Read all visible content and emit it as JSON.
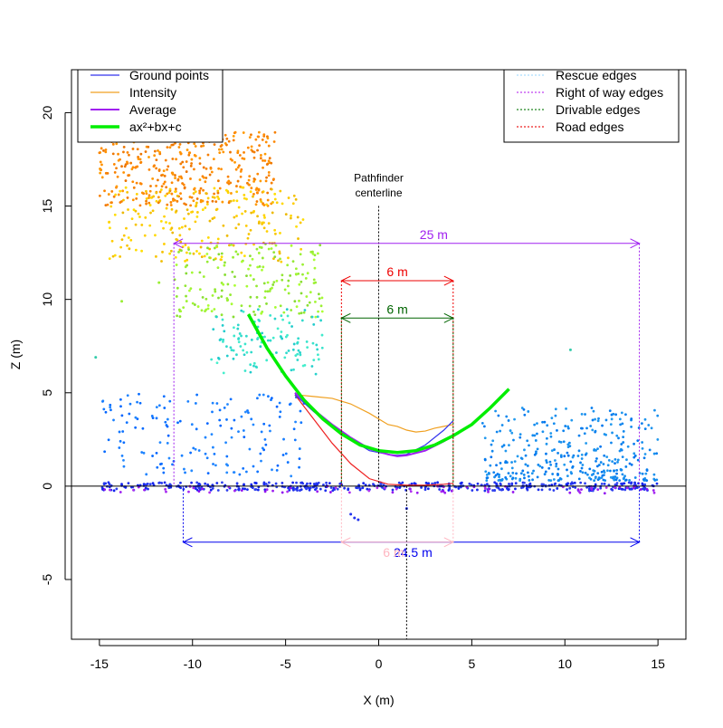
{
  "chart_data": {
    "type": "scatter",
    "title": "",
    "xlabel": "X (m)",
    "ylabel": "Z (m)",
    "xlim": [
      -16.5,
      16.5
    ],
    "ylim": [
      -8.2,
      22.3
    ],
    "x_ticks": [
      -15,
      -10,
      -5,
      0,
      5,
      10,
      15
    ],
    "y_ticks": [
      -5,
      0,
      5,
      10,
      15,
      20
    ],
    "x_tick_labels": [
      "-15",
      "-10",
      "-5",
      "0",
      "5",
      "10",
      "15"
    ],
    "y_tick_labels": [
      "-5",
      "0",
      "5",
      "10",
      "15",
      "20"
    ],
    "grid": false,
    "legend_left": {
      "position": "top-left",
      "entries": [
        {
          "label": "Ground points",
          "color": "#3333ee"
        },
        {
          "label": "Intensity",
          "color": "#f0a020"
        },
        {
          "label": "Average",
          "color": "#a020f0"
        },
        {
          "label": "ax²+bx+c",
          "color": "#00ee00"
        }
      ]
    },
    "legend_right": {
      "position": "top-right",
      "entries": [
        {
          "label": "Rescue edges",
          "color": "#aaddff"
        },
        {
          "label": "Right of way edges",
          "color": "#c040f0"
        },
        {
          "label": "Drivable edges",
          "color": "#228822"
        },
        {
          "label": "Road edges",
          "color": "#ee2222"
        }
      ]
    },
    "centerline_label_1": "Pathfinder",
    "centerline_label_2": "centerline",
    "centerline_x": 0,
    "lower_center_x": 1.5,
    "dimensions": [
      {
        "label": "25 m",
        "x1": -11,
        "x2": 14,
        "y": 13,
        "color": "#a020f0"
      },
      {
        "label": "6 m",
        "x1": -2,
        "x2": 4,
        "y": 11,
        "color": "#ee0000"
      },
      {
        "label": "6 m",
        "x1": -2,
        "x2": 4,
        "y": 9,
        "color": "#006400"
      },
      {
        "label": "24.5 m",
        "x1": -10.5,
        "x2": 14,
        "y": -3,
        "color": "#0000ee"
      },
      {
        "label": "6 m",
        "x1": -2,
        "x2": 4,
        "y": -3,
        "color": "#ffb6c1"
      }
    ],
    "series": [
      {
        "name": "ax²+bx+c",
        "color": "#00ee00",
        "x": [
          -7,
          -6,
          -5,
          -4,
          -3,
          -2,
          -1,
          0,
          1,
          2,
          3,
          4,
          5,
          6,
          7
        ],
        "y": [
          9.2,
          7.4,
          5.9,
          4.6,
          3.6,
          2.8,
          2.2,
          1.9,
          1.8,
          1.9,
          2.2,
          2.7,
          3.3,
          4.2,
          5.2
        ]
      },
      {
        "name": "Average",
        "color": "#a020f0",
        "x": [
          -4.5,
          -3.5,
          -2.5,
          -1.5,
          -0.5,
          0.5,
          1.0,
          1.5,
          2.5,
          3.5,
          4.0
        ],
        "y": [
          5.0,
          4.1,
          3.3,
          2.6,
          2.0,
          1.7,
          1.6,
          1.65,
          1.9,
          2.4,
          2.7
        ]
      },
      {
        "name": "Ground points",
        "color": "#3333ee",
        "x": [
          -4.5,
          -3.5,
          -2.5,
          -1.5,
          -0.5,
          0.5,
          1.0,
          1.5,
          2.5,
          3.5,
          4.0
        ],
        "y": [
          4.9,
          4.0,
          3.2,
          2.5,
          1.9,
          1.7,
          1.65,
          1.7,
          2.2,
          3.0,
          3.5
        ]
      },
      {
        "name": "Intensity",
        "color": "#f0a020",
        "x": [
          -4.5,
          -3.5,
          -2.5,
          -1.5,
          -0.5,
          0.5,
          1.0,
          1.5,
          2.0,
          2.5,
          3.0,
          3.5,
          4.0
        ],
        "y": [
          4.9,
          4.8,
          4.7,
          4.4,
          3.9,
          3.3,
          3.2,
          3.0,
          2.9,
          2.95,
          3.1,
          3.2,
          3.3
        ]
      },
      {
        "name": "Road edges",
        "color": "#ee2222",
        "x": [
          -4.5,
          -3.5,
          -2.5,
          -1.5,
          -0.5,
          0.5,
          1.5,
          2.5,
          3.5,
          4.0
        ],
        "y": [
          4.9,
          3.6,
          2.3,
          1.2,
          0.4,
          0.1,
          0.05,
          0.05,
          0.1,
          0.15
        ]
      }
    ],
    "point_clouds": [
      {
        "name": "tree-canopy-top",
        "x_range": [
          -15,
          -5.5
        ],
        "y_range": [
          15,
          19
        ],
        "count": 380,
        "color": "#ff8800"
      },
      {
        "name": "tree-canopy-mid",
        "x_range": [
          -14.5,
          -4
        ],
        "y_range": [
          12,
          16
        ],
        "count": 220,
        "color": "#ffcc00"
      },
      {
        "name": "tree-canopy-low",
        "x_range": [
          -11,
          -3
        ],
        "y_range": [
          9,
          13
        ],
        "count": 180,
        "color": "#99ee33"
      },
      {
        "name": "tree-trunk-area",
        "x_range": [
          -9,
          -3
        ],
        "y_range": [
          6,
          9.5
        ],
        "count": 120,
        "color": "#33ddcc"
      },
      {
        "name": "left-low-scatter",
        "x_range": [
          -15,
          -4
        ],
        "y_range": [
          0.5,
          5
        ],
        "count": 160,
        "color": "#1177ff"
      },
      {
        "name": "right-vegetation",
        "x_range": [
          5.5,
          15
        ],
        "y_range": [
          0.3,
          4.2
        ],
        "count": 340,
        "color": "#1188ee"
      },
      {
        "name": "ground-strip",
        "x_range": [
          -15,
          15
        ],
        "y_range": [
          -0.25,
          0.2
        ],
        "count": 420,
        "color": "#2233ee"
      },
      {
        "name": "ground-violet",
        "x_range": [
          -15,
          15
        ],
        "y_range": [
          -0.4,
          0.0
        ],
        "count": 70,
        "color": "#a020f0"
      }
    ],
    "outlier_points": [
      {
        "x": -1.5,
        "y": -1.5,
        "color": "#2233ee"
      },
      {
        "x": -1.3,
        "y": -1.7,
        "color": "#2233ee"
      },
      {
        "x": -1.1,
        "y": -1.8,
        "color": "#2233ee"
      },
      {
        "x": 1.5,
        "y": -1.2,
        "color": "#2233ee"
      },
      {
        "x": 10.3,
        "y": 7.3,
        "color": "#33ccaa"
      },
      {
        "x": -15.2,
        "y": 6.9,
        "color": "#33ccaa"
      },
      {
        "x": -13.8,
        "y": 9.9,
        "color": "#99ee33"
      },
      {
        "x": -11.8,
        "y": 10.9,
        "color": "#99ee33"
      }
    ]
  }
}
